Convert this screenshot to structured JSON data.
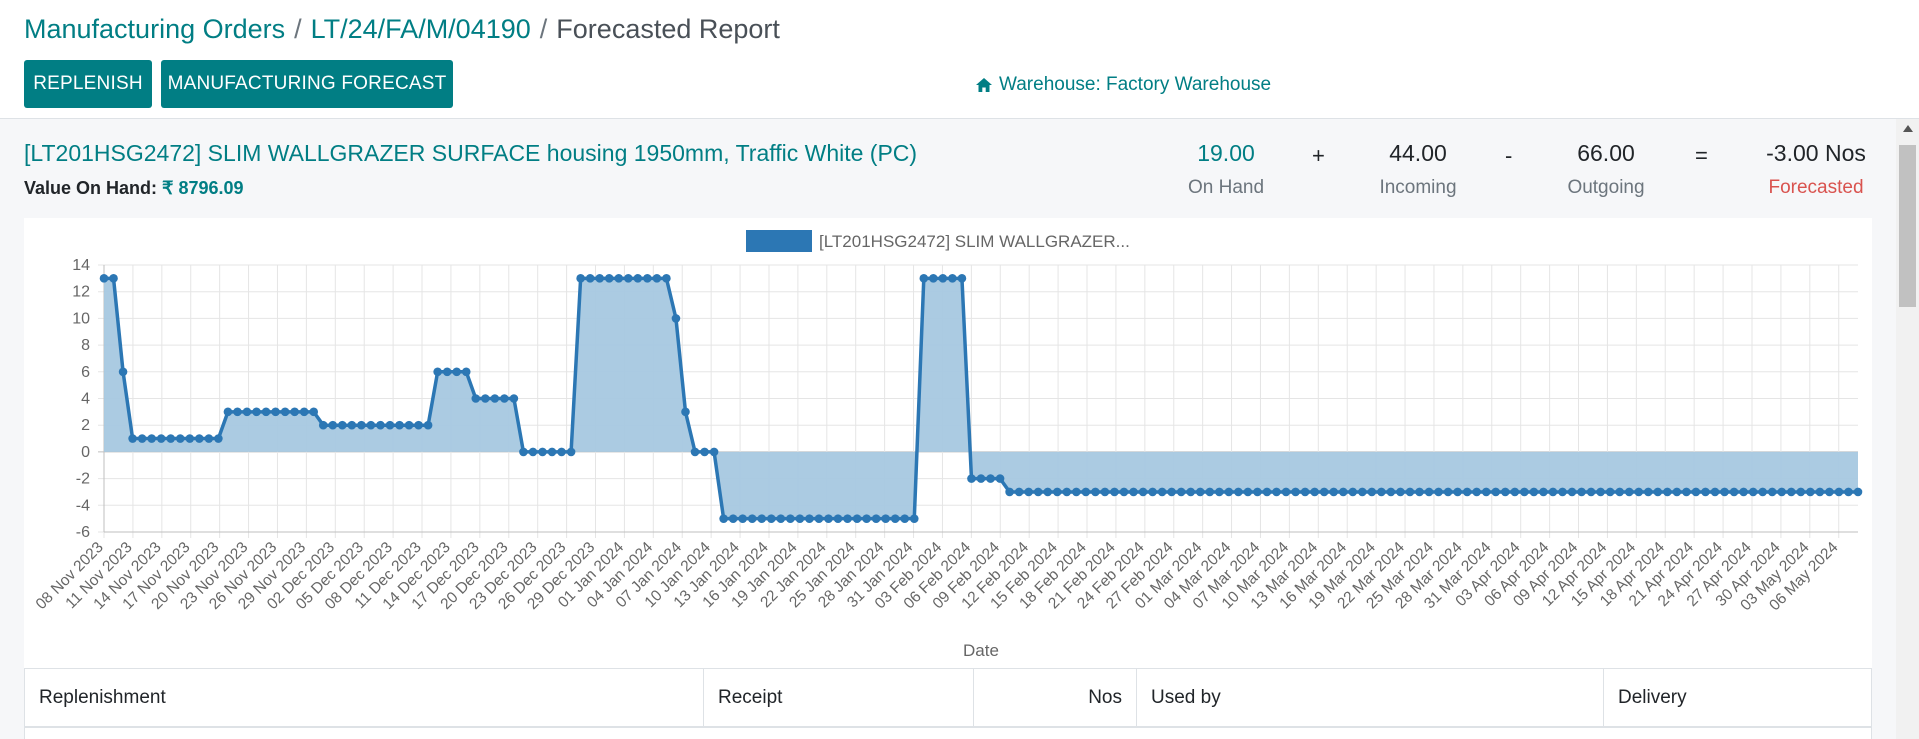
{
  "breadcrumb": {
    "items": [
      "Manufacturing Orders",
      "LT/24/FA/M/04190"
    ],
    "current": "Forecasted Report",
    "separator": "/"
  },
  "buttons": {
    "replenish": "REPLENISH",
    "manufacturing_forecast": "MANUFACTURING FORECAST"
  },
  "warehouse": {
    "icon": "home-icon",
    "label": "Warehouse: Factory Warehouse"
  },
  "product": {
    "title": "[LT201HSG2472] SLIM WALLGRAZER SURFACE housing 1950mm, Traffic White (PC)",
    "value_label": "Value On Hand:",
    "value_amount": "₹ 8796.09"
  },
  "summary": {
    "on_hand": {
      "value": "19.00",
      "label": "On Hand"
    },
    "plus": "+",
    "incoming": {
      "value": "44.00",
      "label": "Incoming"
    },
    "minus": "-",
    "outgoing": {
      "value": "66.00",
      "label": "Outgoing"
    },
    "equals": "=",
    "forecasted": {
      "value": "-3.00 Nos",
      "label": "Forecasted"
    }
  },
  "colors": {
    "accent": "#017e84",
    "danger": "#d9534f",
    "series_line": "#2c77b4",
    "series_fill": "#a6c8e0"
  },
  "chart_data": {
    "type": "area",
    "legend": "[LT201HSG2472] SLIM WALLGRAZER...",
    "legend_position": "top",
    "xlabel": "Date",
    "ylabel": "",
    "ylim": [
      -6,
      14
    ],
    "yticks": [
      14,
      12,
      10,
      8,
      6,
      4,
      2,
      0,
      -2,
      -4,
      -6
    ],
    "grid": true,
    "start_date": "2023-11-08",
    "end_date": "2024-05-08",
    "x_tick_labels": [
      "08 Nov 2023",
      "11 Nov 2023",
      "14 Nov 2023",
      "17 Nov 2023",
      "20 Nov 2023",
      "23 Nov 2023",
      "26 Nov 2023",
      "29 Nov 2023",
      "02 Dec 2023",
      "05 Dec 2023",
      "08 Dec 2023",
      "11 Dec 2023",
      "14 Dec 2023",
      "17 Dec 2023",
      "20 Dec 2023",
      "23 Dec 2023",
      "26 Dec 2023",
      "29 Dec 2023",
      "01 Jan 2024",
      "04 Jan 2024",
      "07 Jan 2024",
      "10 Jan 2024",
      "13 Jan 2024",
      "16 Jan 2024",
      "19 Jan 2024",
      "22 Jan 2024",
      "25 Jan 2024",
      "28 Jan 2024",
      "31 Jan 2024",
      "03 Feb 2024",
      "06 Feb 2024",
      "09 Feb 2024",
      "12 Feb 2024",
      "15 Feb 2024",
      "18 Feb 2024",
      "21 Feb 2024",
      "24 Feb 2024",
      "27 Feb 2024",
      "01 Mar 2024",
      "04 Mar 2024",
      "07 Mar 2024",
      "10 Mar 2024",
      "13 Mar 2024",
      "16 Mar 2024",
      "19 Mar 2024",
      "22 Mar 2024",
      "25 Mar 2024",
      "28 Mar 2024",
      "31 Mar 2024",
      "03 Apr 2024",
      "06 Apr 2024",
      "09 Apr 2024",
      "12 Apr 2024",
      "15 Apr 2024",
      "18 Apr 2024",
      "21 Apr 2024",
      "24 Apr 2024",
      "27 Apr 2024",
      "30 Apr 2024",
      "03 May 2024",
      "06 May 2024"
    ],
    "series": [
      {
        "name": "[LT201HSG2472] SLIM WALLGRAZER...",
        "values": [
          13,
          13,
          6,
          1,
          1,
          1,
          1,
          1,
          1,
          1,
          1,
          1,
          1,
          3,
          3,
          3,
          3,
          3,
          3,
          3,
          3,
          3,
          3,
          2,
          2,
          2,
          2,
          2,
          2,
          2,
          2,
          2,
          2,
          2,
          2,
          6,
          6,
          6,
          6,
          4,
          4,
          4,
          4,
          4,
          0,
          0,
          0,
          0,
          0,
          0,
          13,
          13,
          13,
          13,
          13,
          13,
          13,
          13,
          13,
          13,
          10,
          3,
          0,
          0,
          0,
          -5,
          -5,
          -5,
          -5,
          -5,
          -5,
          -5,
          -5,
          -5,
          -5,
          -5,
          -5,
          -5,
          -5,
          -5,
          -5,
          -5,
          -5,
          -5,
          -5,
          -5,
          13,
          13,
          13,
          13,
          13,
          -2,
          -2,
          -2,
          -2,
          -3,
          -3,
          -3,
          -3,
          -3,
          -3,
          -3,
          -3,
          -3,
          -3,
          -3,
          -3,
          -3,
          -3,
          -3,
          -3,
          -3,
          -3,
          -3,
          -3,
          -3,
          -3,
          -3,
          -3,
          -3,
          -3,
          -3,
          -3,
          -3,
          -3,
          -3,
          -3,
          -3,
          -3,
          -3,
          -3,
          -3,
          -3,
          -3,
          -3,
          -3,
          -3,
          -3,
          -3,
          -3,
          -3,
          -3,
          -3,
          -3,
          -3,
          -3,
          -3,
          -3,
          -3,
          -3,
          -3,
          -3,
          -3,
          -3,
          -3,
          -3,
          -3,
          -3,
          -3,
          -3,
          -3,
          -3,
          -3,
          -3,
          -3,
          -3,
          -3,
          -3,
          -3,
          -3,
          -3,
          -3,
          -3,
          -3,
          -3,
          -3,
          -3,
          -3,
          -3,
          -3,
          -3,
          -3,
          -3,
          -3,
          -3
        ]
      }
    ]
  },
  "table": {
    "headers": [
      "Replenishment",
      "Receipt",
      "Nos",
      "Used by",
      "Delivery"
    ]
  }
}
